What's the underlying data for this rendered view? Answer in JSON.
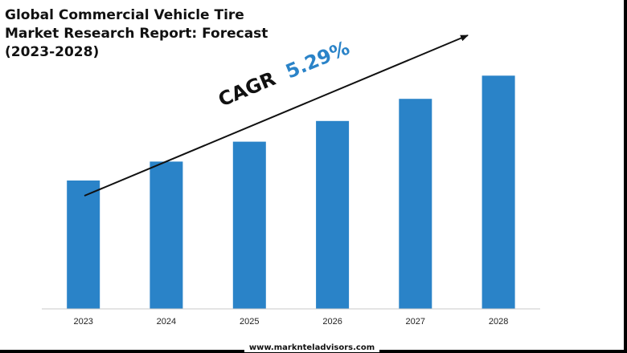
{
  "chart_data": {
    "type": "bar",
    "title_lines": [
      "Global Commercial Vehicle Tire",
      "Market Research Report: Forecast",
      "(2023-2028)"
    ],
    "categories": [
      "2023",
      "2024",
      "2025",
      "2026",
      "2027",
      "2028"
    ],
    "values": [
      1.0,
      1.053,
      1.109,
      1.167,
      1.229,
      1.294
    ],
    "ylim": [
      0.64,
      1.36
    ],
    "xlabel": "",
    "ylabel": "",
    "grid": false,
    "legend": "none",
    "annotation": {
      "label": "CAGR",
      "value": "5.29%"
    },
    "colors": {
      "bar": "#2a83c8",
      "cagr_value": "#2a83c8",
      "arrow": "#111111"
    }
  },
  "footer": {
    "website": "www.marknteladvisors.com"
  }
}
